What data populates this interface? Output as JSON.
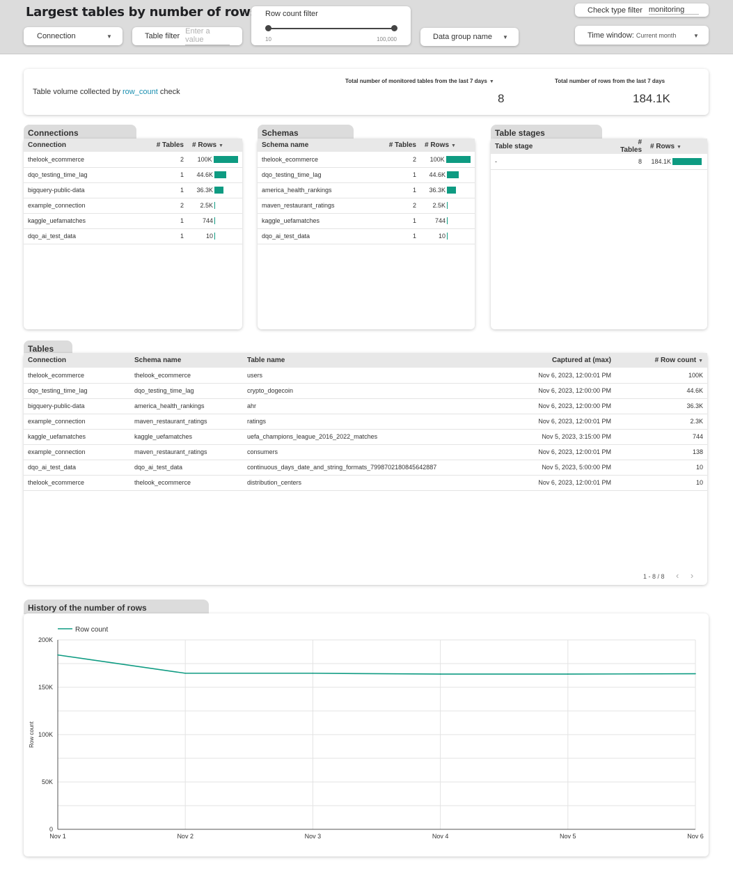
{
  "header": {
    "title": "Largest tables by number of rows",
    "connection_label": "Connection",
    "table_filter_label": "Table filter",
    "table_filter_placeholder": "Enter a value",
    "row_count_filter_label": "Row count filter",
    "row_count_min": "10",
    "row_count_max": "100,000",
    "data_group_label": "Data group name",
    "check_type_label": "Check type filter",
    "check_type_value": "monitoring",
    "time_window_label": "Time window:",
    "time_window_value": "Current month"
  },
  "summary": {
    "desc_prefix": "Table volume collected by ",
    "desc_link": "row_count",
    "desc_suffix": " check",
    "kpi1_label": "Total number of monitored tables from the last 7 days",
    "kpi1_value": "8",
    "kpi2_label": "Total number of rows from the last 7 days",
    "kpi2_value": "184.1K"
  },
  "connections": {
    "title": "Connections",
    "headers": [
      "Connection",
      "# Tables",
      "# Rows"
    ],
    "rows": [
      {
        "name": "thelook_ecommerce",
        "tables": "2",
        "rows": "100K",
        "frac": 1.0
      },
      {
        "name": "dqo_testing_time_lag",
        "tables": "1",
        "rows": "44.6K",
        "frac": 0.446
      },
      {
        "name": "bigquery-public-data",
        "tables": "1",
        "rows": "36.3K",
        "frac": 0.363
      },
      {
        "name": "example_connection",
        "tables": "2",
        "rows": "2.5K",
        "frac": 0.025
      },
      {
        "name": "kaggle_uefamatches",
        "tables": "1",
        "rows": "744",
        "frac": 0.0074
      },
      {
        "name": "dqo_ai_test_data",
        "tables": "1",
        "rows": "10",
        "frac": 0.0001
      }
    ]
  },
  "schemas": {
    "title": "Schemas",
    "headers": [
      "Schema name",
      "# Tables",
      "# Rows"
    ],
    "rows": [
      {
        "name": "thelook_ecommerce",
        "tables": "2",
        "rows": "100K",
        "frac": 1.0
      },
      {
        "name": "dqo_testing_time_lag",
        "tables": "1",
        "rows": "44.6K",
        "frac": 0.446
      },
      {
        "name": "america_health_rankings",
        "tables": "1",
        "rows": "36.3K",
        "frac": 0.363
      },
      {
        "name": "maven_restaurant_ratings",
        "tables": "2",
        "rows": "2.5K",
        "frac": 0.025
      },
      {
        "name": "kaggle_uefamatches",
        "tables": "1",
        "rows": "744",
        "frac": 0.0074
      },
      {
        "name": "dqo_ai_test_data",
        "tables": "1",
        "rows": "10",
        "frac": 0.0001
      }
    ]
  },
  "stages": {
    "title": "Table stages",
    "headers": [
      "Table stage",
      "# Tables",
      "# Rows"
    ],
    "rows": [
      {
        "name": "-",
        "tables": "8",
        "rows": "184.1K",
        "frac": 1.0
      }
    ]
  },
  "tables": {
    "title": "Tables",
    "headers": [
      "Connection",
      "Schema name",
      "Table name",
      "Captured at (max)",
      "# Row count"
    ],
    "rows": [
      {
        "connection": "thelook_ecommerce",
        "schema": "thelook_ecommerce",
        "table": "users",
        "captured": "Nov 6, 2023, 12:00:01 PM",
        "count": "100K"
      },
      {
        "connection": "dqo_testing_time_lag",
        "schema": "dqo_testing_time_lag",
        "table": "crypto_dogecoin",
        "captured": "Nov 6, 2023, 12:00:00 PM",
        "count": "44.6K"
      },
      {
        "connection": "bigquery-public-data",
        "schema": "america_health_rankings",
        "table": "ahr",
        "captured": "Nov 6, 2023, 12:00:00 PM",
        "count": "36.3K"
      },
      {
        "connection": "example_connection",
        "schema": "maven_restaurant_ratings",
        "table": "ratings",
        "captured": "Nov 6, 2023, 12:00:01 PM",
        "count": "2.3K"
      },
      {
        "connection": "kaggle_uefamatches",
        "schema": "kaggle_uefamatches",
        "table": "uefa_champions_league_2016_2022_matches",
        "captured": "Nov 5, 2023, 3:15:00 PM",
        "count": "744"
      },
      {
        "connection": "example_connection",
        "schema": "maven_restaurant_ratings",
        "table": "consumers",
        "captured": "Nov 6, 2023, 12:00:01 PM",
        "count": "138"
      },
      {
        "connection": "dqo_ai_test_data",
        "schema": "dqo_ai_test_data",
        "table": "continuous_days_date_and_string_formats_7998702180845642887",
        "captured": "Nov 5, 2023, 5:00:00 PM",
        "count": "10"
      },
      {
        "connection": "thelook_ecommerce",
        "schema": "thelook_ecommerce",
        "table": "distribution_centers",
        "captured": "Nov 6, 2023, 12:00:01 PM",
        "count": "10"
      }
    ],
    "pager": "1 - 8 / 8"
  },
  "history": {
    "title": "History of the number of rows"
  },
  "colors": {
    "accent": "#0e9b82",
    "link": "#1a8fb0",
    "header_bg": "#dcdcdc"
  },
  "chart_data": {
    "type": "line",
    "title": "",
    "xlabel": "",
    "ylabel": "Row count",
    "x": [
      "Nov 1",
      "Nov 2",
      "Nov 3",
      "Nov 4",
      "Nov 5",
      "Nov 6"
    ],
    "series": [
      {
        "name": "Row count",
        "values": [
          184100,
          164800,
          164800,
          163900,
          163900,
          164300
        ]
      }
    ],
    "yticks": [
      "0",
      "50K",
      "100K",
      "150K",
      "200K"
    ],
    "ylim": [
      0,
      200000
    ],
    "grid": true,
    "legend": "top-left"
  }
}
